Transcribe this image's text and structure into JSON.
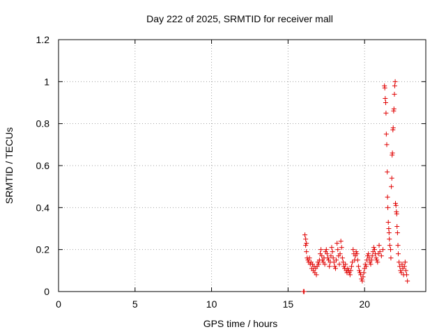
{
  "chart_data": {
    "type": "scatter",
    "title": "Day 222 of 2025, SRMTID for receiver mall",
    "xlabel": "GPS time / hours",
    "ylabel": "SRMTID / TECUs",
    "xlim": [
      0,
      24
    ],
    "ylim": [
      0,
      1.2
    ],
    "grid": true,
    "x_ticks": [
      {
        "value": 0,
        "label": "0"
      },
      {
        "value": 5,
        "label": "5"
      },
      {
        "value": 10,
        "label": "10"
      },
      {
        "value": 15,
        "label": "15"
      },
      {
        "value": 20,
        "label": "20"
      }
    ],
    "y_ticks": [
      {
        "value": 0,
        "label": "0"
      },
      {
        "value": 0.2,
        "label": "0.2"
      },
      {
        "value": 0.4,
        "label": "0.4"
      },
      {
        "value": 0.6,
        "label": "0.6"
      },
      {
        "value": 0.8,
        "label": "0.8"
      },
      {
        "value": 1.0,
        "label": "1"
      },
      {
        "value": 1.2,
        "label": "1.2"
      }
    ],
    "marker": "+",
    "marker_color": "#e00000",
    "series": [
      {
        "name": "SRMTID",
        "points": [
          [
            16.0,
            0.0
          ],
          [
            16.05,
            0.0
          ],
          [
            16.1,
            0.27
          ],
          [
            16.15,
            0.25
          ],
          [
            16.15,
            0.22
          ],
          [
            16.2,
            0.23
          ],
          [
            16.2,
            0.19
          ],
          [
            16.25,
            0.16
          ],
          [
            16.3,
            0.15
          ],
          [
            16.35,
            0.14
          ],
          [
            16.4,
            0.16
          ],
          [
            16.45,
            0.13
          ],
          [
            16.5,
            0.14
          ],
          [
            16.55,
            0.11
          ],
          [
            16.6,
            0.13
          ],
          [
            16.65,
            0.1
          ],
          [
            16.7,
            0.12
          ],
          [
            16.75,
            0.09
          ],
          [
            16.8,
            0.11
          ],
          [
            16.85,
            0.08
          ],
          [
            16.9,
            0.12
          ],
          [
            16.95,
            0.14
          ],
          [
            17.0,
            0.13
          ],
          [
            17.05,
            0.15
          ],
          [
            17.1,
            0.18
          ],
          [
            17.15,
            0.2
          ],
          [
            17.2,
            0.17
          ],
          [
            17.25,
            0.15
          ],
          [
            17.3,
            0.14
          ],
          [
            17.35,
            0.16
          ],
          [
            17.4,
            0.13
          ],
          [
            17.45,
            0.19
          ],
          [
            17.5,
            0.2
          ],
          [
            17.55,
            0.18
          ],
          [
            17.6,
            0.16
          ],
          [
            17.65,
            0.15
          ],
          [
            17.7,
            0.12
          ],
          [
            17.75,
            0.14
          ],
          [
            17.8,
            0.17
          ],
          [
            17.85,
            0.21
          ],
          [
            17.9,
            0.19
          ],
          [
            17.95,
            0.16
          ],
          [
            18.0,
            0.14
          ],
          [
            18.05,
            0.12
          ],
          [
            18.1,
            0.11
          ],
          [
            18.15,
            0.15
          ],
          [
            18.2,
            0.23
          ],
          [
            18.25,
            0.2
          ],
          [
            18.3,
            0.17
          ],
          [
            18.35,
            0.13
          ],
          [
            18.4,
            0.18
          ],
          [
            18.45,
            0.24
          ],
          [
            18.5,
            0.21
          ],
          [
            18.55,
            0.16
          ],
          [
            18.6,
            0.14
          ],
          [
            18.65,
            0.12
          ],
          [
            18.7,
            0.11
          ],
          [
            18.75,
            0.13
          ],
          [
            18.8,
            0.1
          ],
          [
            18.85,
            0.09
          ],
          [
            18.9,
            0.11
          ],
          [
            18.95,
            0.1
          ],
          [
            19.0,
            0.09
          ],
          [
            19.05,
            0.08
          ],
          [
            19.1,
            0.1
          ],
          [
            19.15,
            0.12
          ],
          [
            19.2,
            0.14
          ],
          [
            19.25,
            0.2
          ],
          [
            19.3,
            0.18
          ],
          [
            19.35,
            0.15
          ],
          [
            19.4,
            0.17
          ],
          [
            19.45,
            0.19
          ],
          [
            19.5,
            0.18
          ],
          [
            19.55,
            0.15
          ],
          [
            19.6,
            0.12
          ],
          [
            19.65,
            0.1
          ],
          [
            19.7,
            0.09
          ],
          [
            19.75,
            0.08
          ],
          [
            19.8,
            0.06
          ],
          [
            19.85,
            0.05
          ],
          [
            19.9,
            0.07
          ],
          [
            19.95,
            0.09
          ],
          [
            20.0,
            0.11
          ],
          [
            20.05,
            0.13
          ],
          [
            20.1,
            0.12
          ],
          [
            20.15,
            0.15
          ],
          [
            20.2,
            0.17
          ],
          [
            20.25,
            0.18
          ],
          [
            20.3,
            0.16
          ],
          [
            20.35,
            0.14
          ],
          [
            20.4,
            0.13
          ],
          [
            20.45,
            0.15
          ],
          [
            20.5,
            0.17
          ],
          [
            20.55,
            0.19
          ],
          [
            20.6,
            0.21
          ],
          [
            20.65,
            0.2
          ],
          [
            20.7,
            0.18
          ],
          [
            20.75,
            0.16
          ],
          [
            20.8,
            0.15
          ],
          [
            20.85,
            0.14
          ],
          [
            20.9,
            0.18
          ],
          [
            20.95,
            0.22
          ],
          [
            21.0,
            0.19
          ],
          [
            21.1,
            0.17
          ],
          [
            21.2,
            0.2
          ],
          [
            21.3,
            0.98
          ],
          [
            21.32,
            0.97
          ],
          [
            21.35,
            0.92
          ],
          [
            21.38,
            0.9
          ],
          [
            21.4,
            0.85
          ],
          [
            21.42,
            0.75
          ],
          [
            21.45,
            0.7
          ],
          [
            21.48,
            0.57
          ],
          [
            21.5,
            0.45
          ],
          [
            21.52,
            0.4
          ],
          [
            21.55,
            0.33
          ],
          [
            21.58,
            0.3
          ],
          [
            21.6,
            0.28
          ],
          [
            21.62,
            0.25
          ],
          [
            21.65,
            0.22
          ],
          [
            21.7,
            0.2
          ],
          [
            21.72,
            0.16
          ],
          [
            21.75,
            0.5
          ],
          [
            21.78,
            0.54
          ],
          [
            21.8,
            0.65
          ],
          [
            21.82,
            0.66
          ],
          [
            21.85,
            0.77
          ],
          [
            21.87,
            0.78
          ],
          [
            21.9,
            0.86
          ],
          [
            21.92,
            0.87
          ],
          [
            21.95,
            0.94
          ],
          [
            21.97,
            0.98
          ],
          [
            22.0,
            1.0
          ],
          [
            22.02,
            0.42
          ],
          [
            22.05,
            0.41
          ],
          [
            22.08,
            0.38
          ],
          [
            22.1,
            0.37
          ],
          [
            22.12,
            0.31
          ],
          [
            22.15,
            0.28
          ],
          [
            22.18,
            0.22
          ],
          [
            22.2,
            0.18
          ],
          [
            22.25,
            0.14
          ],
          [
            22.3,
            0.12
          ],
          [
            22.35,
            0.1
          ],
          [
            22.4,
            0.09
          ],
          [
            22.45,
            0.13
          ],
          [
            22.5,
            0.11
          ],
          [
            22.55,
            0.08
          ],
          [
            22.6,
            0.12
          ],
          [
            22.65,
            0.14
          ],
          [
            22.7,
            0.1
          ],
          [
            22.75,
            0.08
          ],
          [
            22.8,
            0.05
          ]
        ]
      }
    ]
  }
}
